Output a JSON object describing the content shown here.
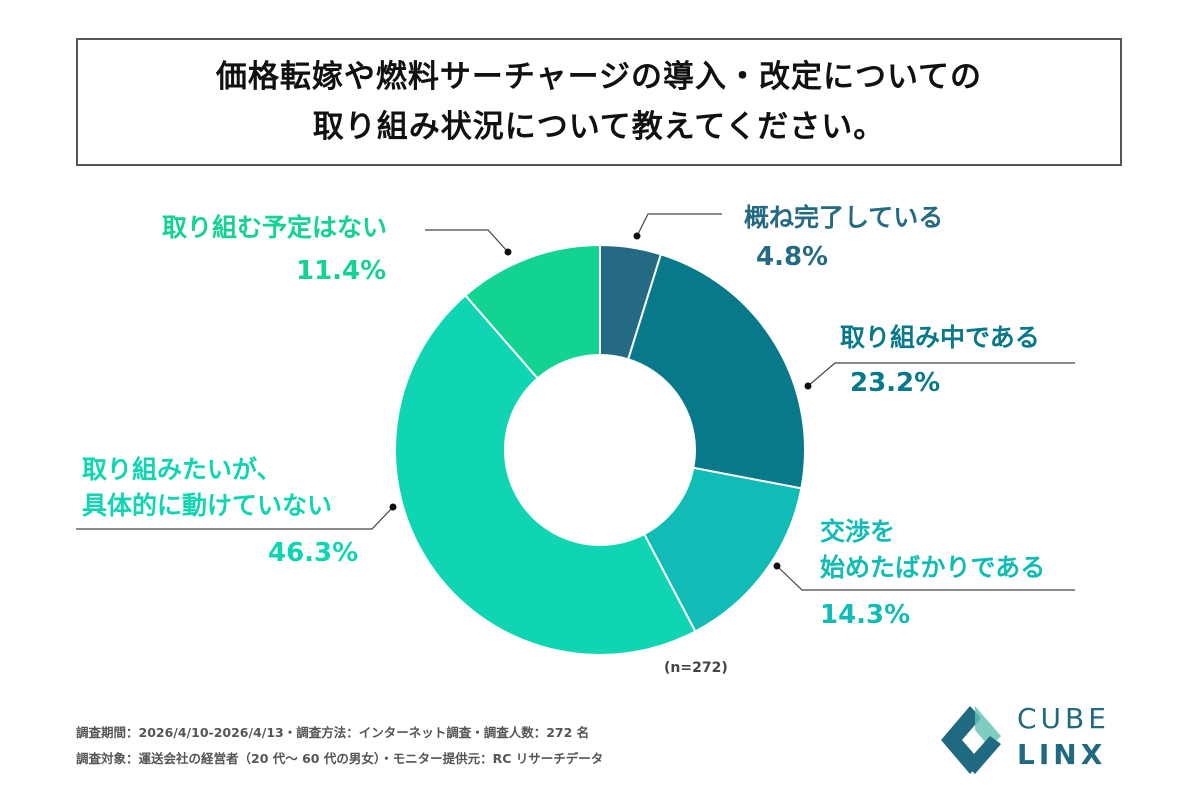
{
  "title": {
    "line1": "価格転嫁や燃料サーチャージの導入・改定についての",
    "line2": "取り組み状況について教えてください。"
  },
  "chart_data": {
    "type": "pie",
    "donut": true,
    "start": "top",
    "direction": "clockwise",
    "slices": [
      {
        "label": "概ね完了している",
        "value": 4.8,
        "display": "4.8%",
        "color": "#236a82"
      },
      {
        "label": "取り組み中である",
        "value": 23.2,
        "display": "23.2%",
        "color": "#07798a"
      },
      {
        "label_lines": [
          "交渉を",
          "始めたばかりである"
        ],
        "value": 14.3,
        "display": "14.3%",
        "color": "#10bcb5"
      },
      {
        "label_lines": [
          "取り組みたいが、",
          "具体的に動けていない"
        ],
        "value": 46.3,
        "display": "46.3%",
        "color": "#0fd5b2"
      },
      {
        "label": "取り組む予定はない",
        "value": 11.4,
        "display": "11.4%",
        "color": "#12d390"
      }
    ],
    "annotation": "(n=272)"
  },
  "footer": {
    "line1": "調査期間：2026/4/10-2026/4/13・調査方法：インターネット調査・調査人数：272 名",
    "line2": "調査対象：運送会社の経営者（20 代～ 60 代の男女）・モニター提供元：RC リサーチデータ"
  },
  "logo": {
    "line1": "CUBE",
    "line2": "LINX",
    "color": "#1f6a80"
  }
}
